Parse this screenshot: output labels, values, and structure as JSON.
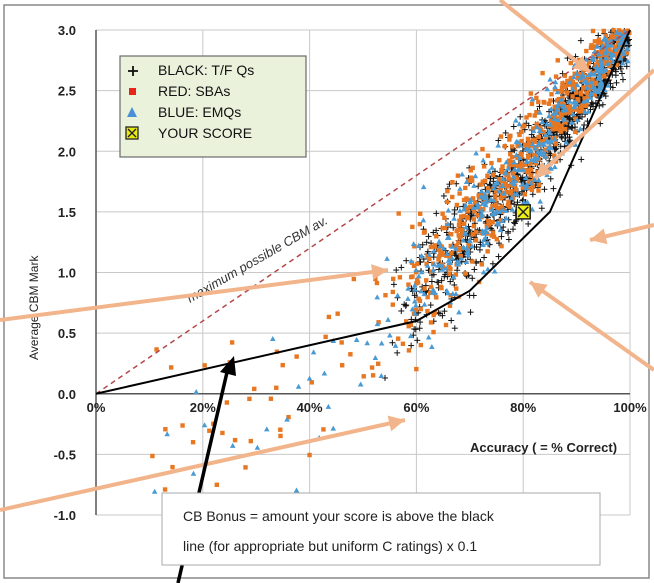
{
  "chart_data": {
    "type": "scatter",
    "title": "",
    "xlabel": "Accuracy ( = % Correct)",
    "ylabel": "Average CBM Mark",
    "xlim": [
      0,
      100
    ],
    "ylim": [
      -1.0,
      3.0
    ],
    "x_ticks": [
      "0%",
      "20%",
      "40%",
      "60%",
      "80%",
      "100%"
    ],
    "y_ticks": [
      "3.0",
      "2.5",
      "2.0",
      "1.5",
      "1.0",
      "0.5",
      "0.0",
      "-0.5",
      "-1.0"
    ],
    "grid": true,
    "legend_position": "top-left",
    "legend": [
      {
        "marker": "+",
        "label": "BLACK: T/F Qs",
        "color": "#111111"
      },
      {
        "marker": "square",
        "label": "RED:  SBAs",
        "color": "#e8251b"
      },
      {
        "marker": "triangle",
        "label": "BLUE: EMQs",
        "color": "#4a90d9"
      },
      {
        "marker": "crossed-square",
        "label": "YOUR SCORE",
        "color": "#e8e813"
      }
    ],
    "series": [
      {
        "name": "BLACK: T/F Qs",
        "color": "#111111",
        "marker": "+"
      },
      {
        "name": "RED:  SBAs",
        "color": "#e87722",
        "marker": "square"
      },
      {
        "name": "BLUE: EMQs",
        "color": "#4a9ad4",
        "marker": "triangle"
      }
    ],
    "your_score": {
      "x": 80,
      "y": 1.5
    },
    "reference_line": {
      "label": "maximum possible CBM av.",
      "points": [
        [
          0,
          0
        ],
        [
          100,
          3.0
        ]
      ],
      "style": "dashed",
      "color": "#b5474a"
    },
    "baseline_line": {
      "points": [
        [
          0,
          0
        ],
        [
          60,
          0.6
        ],
        [
          70,
          0.85
        ],
        [
          85,
          1.5
        ],
        [
          100,
          3.0
        ]
      ],
      "color": "#000000"
    },
    "annotation": "CB Bonus = amount your score is above the black line (for appropriate but uniform C ratings) x 0.1"
  }
}
